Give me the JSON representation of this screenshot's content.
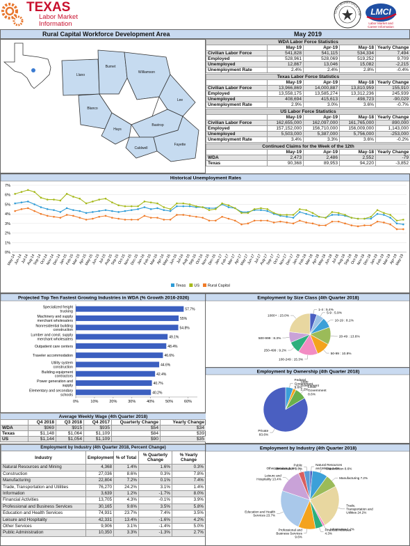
{
  "header": {
    "logo": [
      "TEXAS",
      "Labor Market",
      "Information"
    ],
    "seal": "TEXAS WORKFORCE COMMISSION",
    "lmci": "LMCI",
    "lmci_sub": [
      "Labor Market and",
      "Career Information"
    ]
  },
  "title": "Rural Capital Workforce Development Area",
  "period": "May 2019",
  "map": {
    "counties": [
      "Llano",
      "Burnet",
      "Williamson",
      "Lee",
      "Blanco",
      "Hays",
      "Bastrop",
      "Caldwell",
      "Fayette"
    ]
  },
  "labor_force": [
    {
      "title": "WDA Labor Force Statistics",
      "columns": [
        "May-19",
        "Apr-19",
        "May-18",
        "Yearly Change"
      ],
      "rows": [
        [
          "Civilian Labor Force",
          "541,828",
          "541,115",
          "534,334",
          "7,494"
        ],
        [
          "Employed",
          "528,961",
          "528,069",
          "519,252",
          "9,709"
        ],
        [
          "Unemployed",
          "12,867",
          "13,046",
          "15,082",
          "-2,215"
        ],
        [
          "Unemployment Rate",
          "2.4%",
          "2.4%",
          "2.8%",
          "-0.4%"
        ]
      ]
    },
    {
      "title": "Texas Labor Force Statistics",
      "columns": [
        "May-19",
        "Apr-19",
        "May-18",
        "Yearly Change"
      ],
      "rows": [
        [
          "Civilian Labor Force",
          "13,966,869",
          "14,000,887",
          "13,810,959",
          "155,910"
        ],
        [
          "Employed",
          "13,558,175",
          "13,585,274",
          "13,312,236",
          "245,939"
        ],
        [
          "Unemployed",
          "408,694",
          "415,613",
          "498,723",
          "-90,029"
        ],
        [
          "Unemployment Rate",
          "2.9%",
          "3.0%",
          "3.6%",
          "-0.7%"
        ]
      ]
    },
    {
      "title": "US Labor Force Statistics",
      "columns": [
        "May-19",
        "Apr-19",
        "May-18",
        "Yearly Change"
      ],
      "rows": [
        [
          "Civilian Labor Force",
          "162,655,000",
          "162,097,000",
          "161,765,000",
          "890,000"
        ],
        [
          "Employed",
          "157,152,000",
          "156,710,000",
          "156,009,000",
          "1,143,000"
        ],
        [
          "Unemployed",
          "5,503,000",
          "5,387,000",
          "5,756,000",
          "-253,000"
        ],
        [
          "Unemployment Rate",
          "3.4%",
          "3.3%",
          "3.6%",
          "-0.2%"
        ]
      ]
    },
    {
      "title": "Continued Claims for the Week of the 12th",
      "columns": [
        "May-19",
        "Apr-19",
        "May-18",
        "Yearly Change"
      ],
      "rows": [
        [
          "WDA",
          "2,473",
          "2,486",
          "2,552",
          "-79"
        ],
        [
          "Texas",
          "90,368",
          "89,953",
          "94,220",
          "-3,852"
        ]
      ]
    }
  ],
  "chart_data": [
    {
      "type": "line",
      "title": "Historical Unemployment Rates",
      "x": [
        "May-14",
        "Jun-14",
        "Jul-14",
        "Aug-14",
        "Sep-14",
        "Oct-14",
        "Nov-14",
        "Dec-14",
        "Jan-15",
        "Feb-15",
        "Mar-15",
        "Apr-15",
        "May-15",
        "Jun-15",
        "Jul-15",
        "Aug-15",
        "Sep-15",
        "Oct-15",
        "Nov-15",
        "Dec-15",
        "Jan-16",
        "Feb-16",
        "Mar-16",
        "Apr-16",
        "May-16",
        "Jun-16",
        "Jul-16",
        "Aug-16",
        "Sep-16",
        "Oct-16",
        "Nov-16",
        "Dec-16",
        "Jan-17",
        "Feb-17",
        "Mar-17",
        "Apr-17",
        "May-17",
        "Jun-17",
        "Jul-17",
        "Aug-17",
        "Sep-17",
        "Oct-17",
        "Nov-17",
        "Dec-17",
        "Jan-18",
        "Feb-18",
        "Mar-18",
        "Apr-18",
        "May-18",
        "Jun-18",
        "Jul-18",
        "Aug-18",
        "Sep-18",
        "Oct-18",
        "Nov-18",
        "Dec-18",
        "Jan-19",
        "Feb-19",
        "Mar-19",
        "Apr-19",
        "May-19"
      ],
      "series": [
        {
          "name": "Texas",
          "color": "#2e9bd6",
          "values": [
            5.1,
            5.2,
            5.3,
            5.0,
            4.7,
            4.5,
            4.4,
            4.2,
            4.6,
            4.4,
            4.3,
            4.1,
            4.2,
            4.3,
            4.4,
            4.3,
            4.2,
            4.3,
            4.4,
            4.5,
            4.7,
            4.5,
            4.6,
            4.4,
            4.3,
            4.8,
            4.8,
            4.8,
            4.7,
            4.7,
            4.6,
            4.6,
            5.0,
            4.7,
            4.6,
            4.2,
            4.2,
            4.4,
            4.4,
            4.3,
            4.0,
            3.8,
            3.7,
            3.6,
            4.2,
            4.0,
            3.8,
            3.7,
            3.6,
            3.9,
            3.9,
            3.8,
            3.6,
            3.5,
            3.5,
            3.5,
            4.0,
            3.9,
            3.6,
            3.0,
            2.9
          ]
        },
        {
          "name": "US",
          "color": "#a6b91a",
          "values": [
            6.1,
            6.3,
            6.5,
            6.3,
            5.7,
            5.5,
            5.5,
            5.4,
            6.1,
            5.8,
            5.6,
            5.1,
            5.3,
            5.5,
            5.6,
            5.2,
            4.9,
            4.8,
            4.8,
            4.8,
            5.3,
            5.2,
            5.1,
            4.7,
            4.5,
            5.1,
            5.1,
            5.0,
            4.8,
            4.7,
            4.4,
            4.5,
            5.1,
            4.9,
            4.6,
            4.1,
            4.1,
            4.5,
            4.6,
            4.5,
            4.1,
            3.9,
            3.9,
            3.9,
            4.5,
            4.4,
            4.1,
            3.7,
            3.6,
            4.2,
            4.1,
            3.9,
            3.6,
            3.5,
            3.5,
            3.7,
            4.4,
            4.1,
            3.9,
            3.3,
            3.4
          ]
        },
        {
          "name": "Rural Capital",
          "color": "#f07b28",
          "values": [
            4.3,
            4.5,
            4.6,
            4.3,
            4.0,
            3.8,
            3.7,
            3.6,
            3.9,
            3.8,
            3.6,
            3.4,
            3.5,
            3.7,
            3.8,
            3.6,
            3.5,
            3.4,
            3.4,
            3.4,
            3.8,
            3.6,
            3.6,
            3.4,
            3.4,
            3.9,
            3.9,
            3.8,
            3.7,
            3.6,
            3.3,
            3.3,
            3.7,
            3.5,
            3.3,
            2.9,
            3.0,
            3.3,
            3.3,
            3.3,
            3.1,
            3.2,
            3.1,
            3.0,
            3.3,
            3.1,
            3.0,
            2.8,
            2.8,
            3.2,
            3.2,
            3.0,
            2.8,
            2.7,
            2.8,
            2.8,
            3.2,
            3.1,
            2.9,
            2.4,
            2.4
          ]
        }
      ],
      "ylim": [
        0,
        7
      ],
      "yticks": [
        {
          "value": 0,
          "label": "0%"
        },
        {
          "value": 1,
          "label": "1%"
        },
        {
          "value": 2,
          "label": "2%"
        },
        {
          "value": 3,
          "label": "3%"
        },
        {
          "value": 4,
          "label": "4%"
        },
        {
          "value": 5,
          "label": "5%"
        },
        {
          "value": 6,
          "label": "6%"
        },
        {
          "value": 7,
          "label": "7%"
        }
      ],
      "grid": true,
      "legend": "bottom"
    },
    {
      "type": "bar",
      "orientation": "horizontal",
      "title": "Projected Top Ten Fastest Growing Industries in WDA (% Growth 2016-2026)",
      "categories": [
        "Specialized freight trucking",
        "Machinery and supply merchant wholesalers",
        "Nonresidential building construction",
        "Lumber and const. supply merchant wholesalers",
        "Outpatient care centers",
        "Traveler accommodation",
        "Utility system construction",
        "Building equipment contractors",
        "Power generation and supply",
        "Elementary and secondary schools"
      ],
      "values": [
        57.7,
        55,
        54.8,
        49.1,
        48.4,
        46.6,
        44.6,
        42.4,
        40.7,
        40.2
      ],
      "value_labels": [
        "57.7%",
        "55%",
        "54.8%",
        "49.1%",
        "48.4%",
        "46.6%",
        "44.6%",
        "42.4%",
        "40.7%",
        "40.2%"
      ],
      "color": "#3b5fc0",
      "xlim": [
        0,
        65
      ],
      "xticks": [
        {
          "value": 0,
          "label": "0%"
        },
        {
          "value": 10,
          "label": "10%"
        },
        {
          "value": 20,
          "label": "20%"
        },
        {
          "value": 30,
          "label": "30%"
        },
        {
          "value": 40,
          "label": "40%"
        },
        {
          "value": 50,
          "label": "50%"
        },
        {
          "value": 60,
          "label": "60%"
        }
      ],
      "grid": false
    },
    {
      "type": "pie",
      "title": "Employment by Size Class (4th Quarter 2018)",
      "values": [
        5.4,
        5.9,
        8.1,
        13.6,
        10.8,
        15.3,
        9.2,
        8.3,
        23.0
      ],
      "value_labels": [
        "1-4 : 5.4%",
        "5-9 : 5.9%",
        "10-19 : 8.1%",
        "20-49 : 13.6%",
        "50-99 : 10.8%",
        "100-249 : 15.3%",
        "250-499 : 9.2%",
        "500-999 : 8.3%",
        "1000+ : 23.0%"
      ],
      "colors": [
        "#4a5fc1",
        "#9dc3e6",
        "#3ca0d8",
        "#9bbb59",
        "#f4a31d",
        "#f28cc3",
        "#2eaf7d",
        "#c9a2d8",
        "#e8d7a0"
      ]
    },
    {
      "type": "pie",
      "title": "Employment by Ownership (4th Quarter 2018)",
      "values": [
        5.6,
        2.2,
        8.6,
        83.6
      ],
      "value_labels": [
        "Federal Government 5.6%",
        "State Government 2.2%",
        "Local Government 8.6%",
        "Private 83.6%"
      ],
      "colors": [
        "#3ca0d8",
        "#f4a31d",
        "#6ab04c",
        "#4a5fc1"
      ]
    },
    {
      "type": "pie",
      "title": "Employment by Industry (4th Quarter 2018)",
      "values": [
        1.4,
        8.6,
        7.2,
        24.2,
        1.2,
        4.3,
        9.6,
        23.7,
        13.4,
        3.1,
        3.3
      ],
      "value_labels": [
        "Natural Resources and Mining 1.4%",
        "Construction 8.6%",
        "Manufacturing 7.2%",
        "Trade, Transportation and Utilities 24.2%",
        "Information 1.2%",
        "Financial Activities 4.3%",
        "Professional and Business Services 9.6%",
        "Education and Health Services 23.7%",
        "Leisure and Hospitality 13.4%",
        "Other Services 3.1%",
        "Public Administration 3.3%"
      ],
      "colors": [
        "#4a5fc1",
        "#3ca0d8",
        "#9bbb59",
        "#e8d7a0",
        "#f28cc3",
        "#2eaf7d",
        "#f4a31d",
        "#a9c8ea",
        "#c9a2d8",
        "#d95f5f",
        "#5b9bd5"
      ]
    }
  ],
  "wage": {
    "title": "Average Weekly Wage (4th Quarter 2018)",
    "columns": [
      "Q4 2018",
      "Q3 2018",
      "Q4 2017",
      "Quarterly Change",
      "Yearly Change"
    ],
    "rows": [
      [
        "WDA",
        "$969",
        "$915",
        "$935",
        "$54",
        "$34"
      ],
      [
        "Texas",
        "$1,148",
        "$1,064",
        "$1,109",
        "$84",
        "$39"
      ],
      [
        "US",
        "$1,144",
        "$1,054",
        "$1,109",
        "$90",
        "$35"
      ]
    ]
  },
  "industry_table": {
    "title": "Employment by Industry (4th Quarter 2018, Percent Change)",
    "columns": [
      "Industry",
      "Employment",
      "% of Total",
      "% Quarterly Change",
      "% Yearly Change"
    ],
    "rows": [
      [
        "Natural Resources and Mining",
        "4,368",
        "1.4%",
        "1.6%",
        "0.3%"
      ],
      [
        "Construction",
        "27,036",
        "8.6%",
        "0.3%",
        "7.8%"
      ],
      [
        "Manufacturing",
        "22,804",
        "7.2%",
        "0.1%",
        "7.4%"
      ],
      [
        "Trade, Transportation and Utilities",
        "76,270",
        "24.2%",
        "3.1%",
        "1.4%"
      ],
      [
        "Information",
        "3,639",
        "1.2%",
        "-1.7%",
        "8.0%"
      ],
      [
        "Financial Activities",
        "13,705",
        "4.3%",
        "-0.1%",
        "3.9%"
      ],
      [
        "Professional and Business Services",
        "30,165",
        "9.6%",
        "3.5%",
        "5.8%"
      ],
      [
        "Education and Health Services",
        "74,931",
        "23.7%",
        "7.4%",
        "3.5%"
      ],
      [
        "Leisure and Hospitality",
        "42,331",
        "13.4%",
        "-1.6%",
        "4.2%"
      ],
      [
        "Other Services",
        "9,906",
        "3.1%",
        "-1.4%",
        "5.0%"
      ],
      [
        "Public Administration",
        "10,350",
        "3.3%",
        "-1.3%",
        "2.7%"
      ]
    ]
  }
}
